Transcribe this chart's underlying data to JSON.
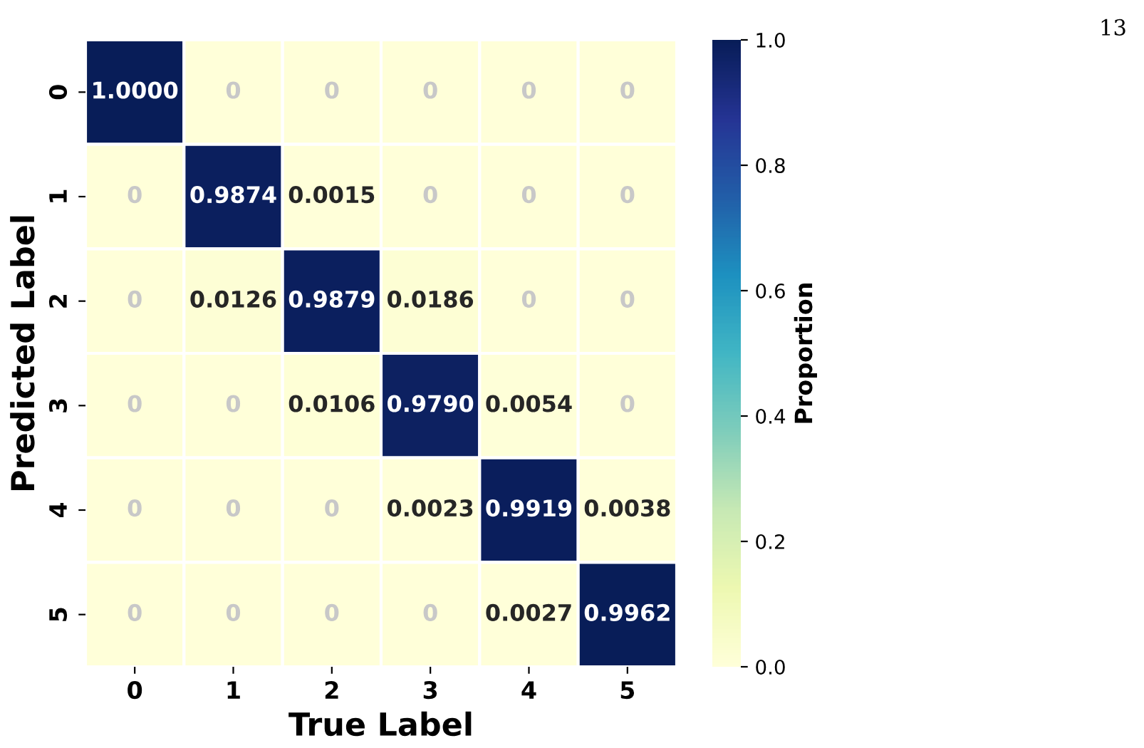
{
  "chart_data": {
    "type": "heatmap",
    "xlabel": "True Label",
    "ylabel": "Predicted Label",
    "clabel": "Proportion",
    "categories": [
      "0",
      "1",
      "2",
      "3",
      "4",
      "5"
    ],
    "y_categories": [
      "0",
      "1",
      "2",
      "3",
      "4",
      "5"
    ],
    "cells": [
      [
        1.0,
        0,
        0,
        0,
        0,
        0
      ],
      [
        0,
        0.9874,
        0.0015,
        0,
        0,
        0
      ],
      [
        0,
        0.0126,
        0.9879,
        0.0186,
        0,
        0
      ],
      [
        0,
        0,
        0.0106,
        0.979,
        0.0054,
        0
      ],
      [
        0,
        0,
        0,
        0.0023,
        0.9919,
        0.0038
      ],
      [
        0,
        0,
        0,
        0,
        0.0027,
        0.9962
      ]
    ],
    "cell_labels": [
      [
        "1.0000",
        "0",
        "0",
        "0",
        "0",
        "0"
      ],
      [
        "0",
        "0.9874",
        "0.0015",
        "0",
        "0",
        "0"
      ],
      [
        "0",
        "0.0126",
        "0.9879",
        "0.0186",
        "0",
        "0"
      ],
      [
        "0",
        "0",
        "0.0106",
        "0.9790",
        "0.0054",
        "0"
      ],
      [
        "0",
        "0",
        "0",
        "0.0023",
        "0.9919",
        "0.0038"
      ],
      [
        "0",
        "0",
        "0",
        "0",
        "0.0027",
        "0.9962"
      ]
    ],
    "clim": [
      0,
      1
    ],
    "cticks": [
      {
        "value": 0,
        "label": "0.0"
      },
      {
        "value": 0.2,
        "label": "0.2"
      },
      {
        "value": 0.4,
        "label": "0.4"
      },
      {
        "value": 0.6,
        "label": "0.6"
      },
      {
        "value": 0.8,
        "label": "0.8"
      },
      {
        "value": 1,
        "label": "1.0"
      }
    ],
    "annotations": [
      "13"
    ]
  }
}
